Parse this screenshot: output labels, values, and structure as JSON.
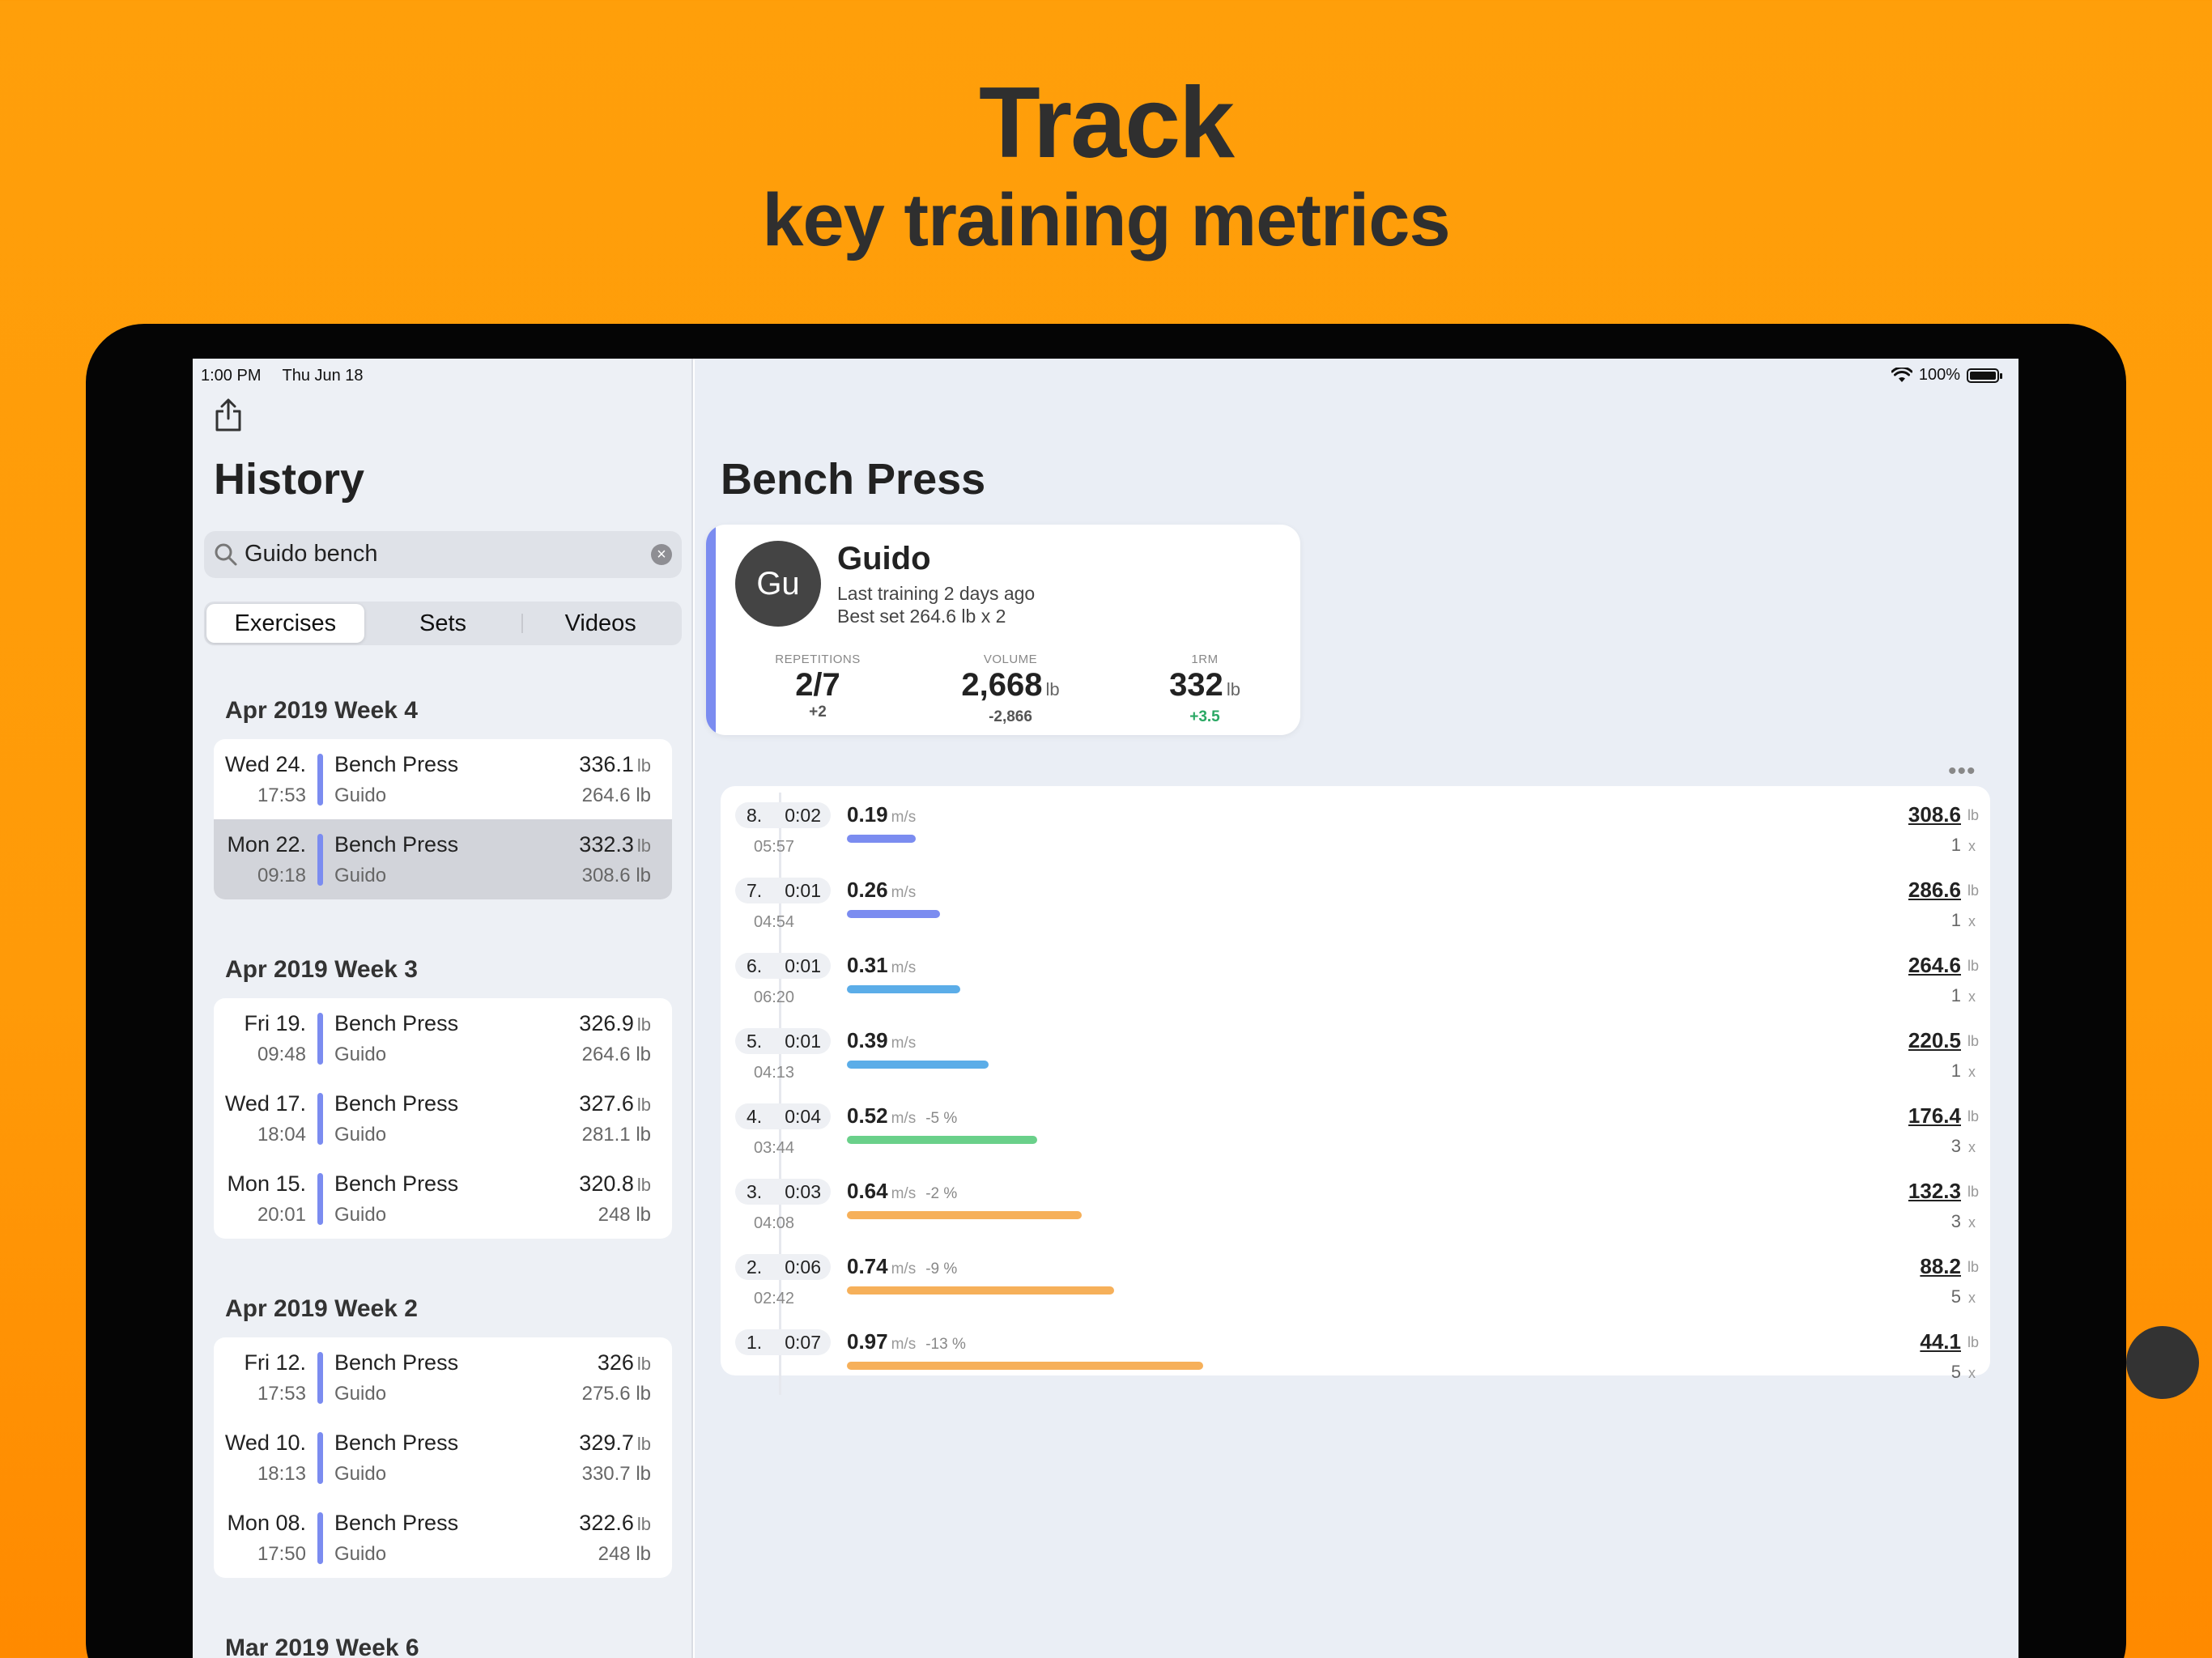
{
  "headline": {
    "title": "Track",
    "subtitle": "key training metrics"
  },
  "status_bar": {
    "time": "1:00 PM",
    "date": "Thu Jun 18",
    "battery": "100%"
  },
  "sidebar": {
    "title": "History",
    "search": {
      "value": "Guido bench"
    },
    "segments": [
      "Exercises",
      "Sets",
      "Videos"
    ],
    "weeks": [
      {
        "label": "Apr 2019 Week 4",
        "entries": [
          {
            "date": "Wed 24.",
            "time": "17:53",
            "exercise": "Bench Press",
            "athlete": "Guido",
            "w1": "336.1",
            "w2": "264.6 lb",
            "selected": false
          },
          {
            "date": "Mon 22.",
            "time": "09:18",
            "exercise": "Bench Press",
            "athlete": "Guido",
            "w1": "332.3",
            "w2": "308.6 lb",
            "selected": true
          }
        ]
      },
      {
        "label": "Apr 2019 Week 3",
        "entries": [
          {
            "date": "Fri 19.",
            "time": "09:48",
            "exercise": "Bench Press",
            "athlete": "Guido",
            "w1": "326.9",
            "w2": "264.6 lb"
          },
          {
            "date": "Wed 17.",
            "time": "18:04",
            "exercise": "Bench Press",
            "athlete": "Guido",
            "w1": "327.6",
            "w2": "281.1 lb"
          },
          {
            "date": "Mon 15.",
            "time": "20:01",
            "exercise": "Bench Press",
            "athlete": "Guido",
            "w1": "320.8",
            "w2": "248 lb"
          }
        ]
      },
      {
        "label": "Apr 2019 Week 2",
        "entries": [
          {
            "date": "Fri 12.",
            "time": "17:53",
            "exercise": "Bench Press",
            "athlete": "Guido",
            "w1": "326",
            "w2": "275.6 lb"
          },
          {
            "date": "Wed 10.",
            "time": "18:13",
            "exercise": "Bench Press",
            "athlete": "Guido",
            "w1": "329.7",
            "w2": "330.7 lb"
          },
          {
            "date": "Mon 08.",
            "time": "17:50",
            "exercise": "Bench Press",
            "athlete": "Guido",
            "w1": "322.6",
            "w2": "248 lb"
          }
        ]
      },
      {
        "label": "Mar 2019 Week 6",
        "entries": []
      }
    ],
    "weight_unit": "lb"
  },
  "detail": {
    "title": "Bench Press",
    "summary": {
      "initials": "Gu",
      "name": "Guido",
      "last_training": "Last training 2 days ago",
      "best_set": "Best set 264.6 lb x 2",
      "metrics": [
        {
          "label": "REPETITIONS",
          "value": "2/7",
          "unit": "",
          "delta": "+2",
          "positive": false
        },
        {
          "label": "VOLUME",
          "value": "2,668",
          "unit": "lb",
          "delta": "-2,866",
          "positive": false
        },
        {
          "label": "1RM",
          "value": "332",
          "unit": "lb",
          "delta": "+3.5",
          "positive": true
        }
      ]
    },
    "more": "•••",
    "speed_unit": "m/s",
    "weight_unit": "lb",
    "reps_unit": "x",
    "sets": [
      {
        "num": "8.",
        "duration": "0:02",
        "clock": "05:57",
        "speed": "0.19",
        "loss": "",
        "bar": 0.17,
        "color": "#7B8CF0",
        "weight": "308.6",
        "reps": "1"
      },
      {
        "num": "7.",
        "duration": "0:01",
        "clock": "04:54",
        "speed": "0.26",
        "loss": "",
        "bar": 0.23,
        "color": "#7B8CF0",
        "weight": "286.6",
        "reps": "1"
      },
      {
        "num": "6.",
        "duration": "0:01",
        "clock": "06:20",
        "speed": "0.31",
        "loss": "",
        "bar": 0.28,
        "color": "#5BADE8",
        "weight": "264.6",
        "reps": "1"
      },
      {
        "num": "5.",
        "duration": "0:01",
        "clock": "04:13",
        "speed": "0.39",
        "loss": "",
        "bar": 0.35,
        "color": "#5BADE8",
        "weight": "220.5",
        "reps": "1"
      },
      {
        "num": "4.",
        "duration": "0:04",
        "clock": "03:44",
        "speed": "0.52",
        "loss": "-5 %",
        "bar": 0.47,
        "color": "#6AD08A",
        "weight": "176.4",
        "reps": "3"
      },
      {
        "num": "3.",
        "duration": "0:03",
        "clock": "04:08",
        "speed": "0.64",
        "loss": "-2 %",
        "bar": 0.58,
        "color": "#F6B05A",
        "weight": "132.3",
        "reps": "3"
      },
      {
        "num": "2.",
        "duration": "0:06",
        "clock": "02:42",
        "speed": "0.74",
        "loss": "-9 %",
        "bar": 0.66,
        "color": "#F6B05A",
        "weight": "88.2",
        "reps": "5"
      },
      {
        "num": "1.",
        "duration": "0:07",
        "clock": "",
        "speed": "0.97",
        "loss": "-13 %",
        "bar": 0.88,
        "color": "#F6B05A",
        "weight": "44.1",
        "reps": "5"
      }
    ]
  }
}
